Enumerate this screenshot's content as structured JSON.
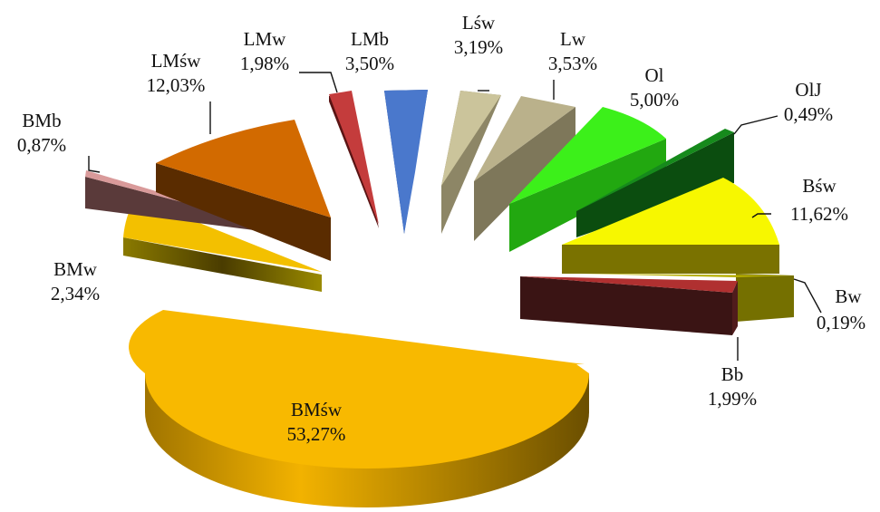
{
  "chart_data": {
    "type": "pie",
    "style": "3d-exploded",
    "title": "",
    "legend": "none",
    "slices": [
      {
        "label": "BMśw",
        "value": 53.27,
        "value_text": "53,27%",
        "color": "#f6b800"
      },
      {
        "label": "BMw",
        "value": 2.34,
        "value_text": "2,34%",
        "color": "#e0b000"
      },
      {
        "label": "BMb",
        "value": 0.87,
        "value_text": "0,87%",
        "color": "#d89a9a"
      },
      {
        "label": "LMśw",
        "value": 12.03,
        "value_text": "12,03%",
        "color": "#cc6600"
      },
      {
        "label": "LMw",
        "value": 1.98,
        "value_text": "1,98%",
        "color": "#c03a3a"
      },
      {
        "label": "LMb",
        "value": 3.5,
        "value_text": "3,50%",
        "color": "#3f6fc8"
      },
      {
        "label": "Lśw",
        "value": 3.19,
        "value_text": "3,19%",
        "color": "#c8c097"
      },
      {
        "label": "Lw",
        "value": 3.53,
        "value_text": "3,53%",
        "color": "#b9b08a"
      },
      {
        "label": "Ol",
        "value": 5.0,
        "value_text": "5,00%",
        "color": "#33ee11"
      },
      {
        "label": "OlJ",
        "value": 0.49,
        "value_text": "0,49%",
        "color": "#0e6b14"
      },
      {
        "label": "Bśw",
        "value": 11.62,
        "value_text": "11,62%",
        "color": "#f8f800"
      },
      {
        "label": "Bw",
        "value": 0.19,
        "value_text": "0,19%",
        "color": "#b8b000"
      },
      {
        "label": "Bb",
        "value": 1.99,
        "value_text": "1,99%",
        "color": "#b03030"
      }
    ]
  }
}
